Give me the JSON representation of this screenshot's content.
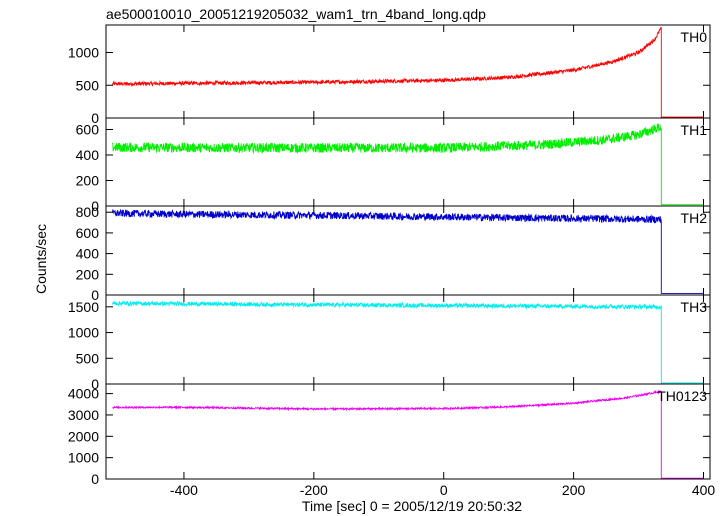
{
  "title": "ae500010010_20051219205032_wam1_trn_4band_long.qdp",
  "ylabel": "Counts/sec",
  "xlabel": "Time [sec] 0 = 2005/12/19 20:50:32",
  "chart_data": {
    "type": "line",
    "title": "ae500010010_20051219205032_wam1_trn_4band_long.qdp",
    "xlabel": "Time [sec] 0 = 2005/12/19 20:50:32",
    "ylabel": "Counts/sec",
    "xlim": [
      -520,
      410
    ],
    "x_ticks": [
      -400,
      -200,
      0,
      200,
      400
    ],
    "cutoff_time": 335,
    "grid": false,
    "panels": [
      {
        "name": "TH0",
        "color": "#ff0000",
        "ylim": [
          0,
          1420
        ],
        "y_ticks": [
          0,
          500,
          1000
        ],
        "profile": [
          [
            -510,
            520
          ],
          [
            -400,
            530
          ],
          [
            -200,
            545
          ],
          [
            0,
            575
          ],
          [
            100,
            620
          ],
          [
            200,
            730
          ],
          [
            260,
            860
          ],
          [
            300,
            1000
          ],
          [
            325,
            1200
          ],
          [
            334,
            1360
          ]
        ],
        "noise": 28,
        "after_value": 15,
        "x_end": 400
      },
      {
        "name": "TH1",
        "color": "#00ee00",
        "ylim": [
          0,
          690
        ],
        "y_ticks": [
          0,
          200,
          400,
          600
        ],
        "profile": [
          [
            -510,
            460
          ],
          [
            -400,
            458
          ],
          [
            -200,
            455
          ],
          [
            0,
            455
          ],
          [
            150,
            480
          ],
          [
            250,
            520
          ],
          [
            300,
            560
          ],
          [
            334,
            620
          ]
        ],
        "noise": 38,
        "after_value": 10,
        "x_end": 400
      },
      {
        "name": "TH2",
        "color": "#0000cc",
        "ylim": [
          0,
          860
        ],
        "y_ticks": [
          0,
          200,
          400,
          600,
          800
        ],
        "profile": [
          [
            -510,
            790
          ],
          [
            -400,
            780
          ],
          [
            -200,
            770
          ],
          [
            0,
            755
          ],
          [
            200,
            740
          ],
          [
            334,
            730
          ]
        ],
        "noise": 35,
        "after_value": 15,
        "x_end": 400
      },
      {
        "name": "TH3",
        "color": "#00eeee",
        "ylim": [
          0,
          1730
        ],
        "y_ticks": [
          0,
          500,
          1000,
          1500
        ],
        "profile": [
          [
            -510,
            1570
          ],
          [
            -400,
            1560
          ],
          [
            -200,
            1540
          ],
          [
            0,
            1525
          ],
          [
            200,
            1510
          ],
          [
            334,
            1500
          ]
        ],
        "noise": 40,
        "after_value": 20,
        "x_end": 400
      },
      {
        "name": "TH0123",
        "color": "#ee00ee",
        "ylim": [
          0,
          4450
        ],
        "y_ticks": [
          0,
          1000,
          2000,
          3000,
          4000
        ],
        "profile": [
          [
            -510,
            3350
          ],
          [
            -400,
            3360
          ],
          [
            -200,
            3280
          ],
          [
            0,
            3300
          ],
          [
            100,
            3380
          ],
          [
            200,
            3550
          ],
          [
            280,
            3800
          ],
          [
            334,
            4100
          ]
        ],
        "noise": 40,
        "after_value": 40,
        "x_end": 400
      }
    ]
  }
}
